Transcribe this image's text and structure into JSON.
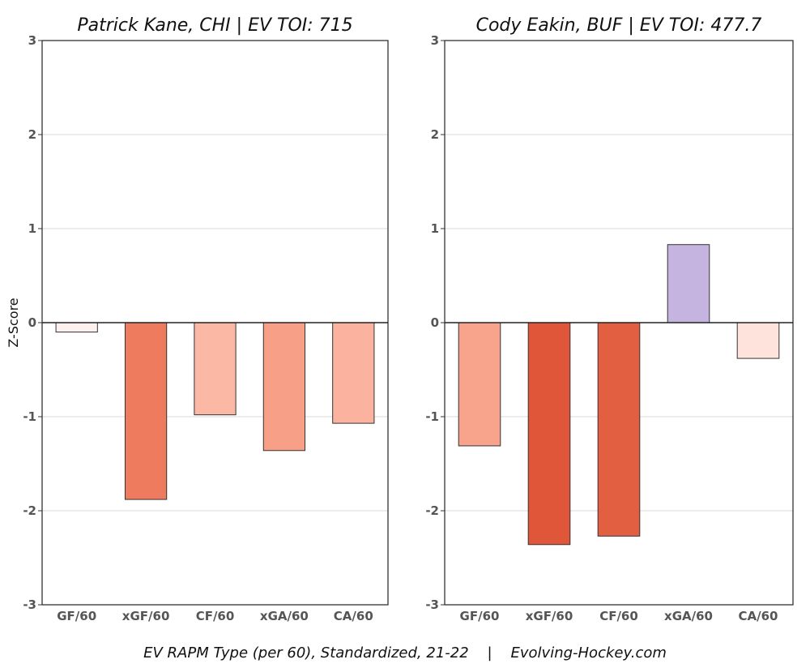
{
  "chart_data": [
    {
      "type": "bar",
      "title": "Patrick Kane, CHI  |  EV TOI: 715",
      "categories": [
        "GF/60",
        "xGF/60",
        "CF/60",
        "xGA/60",
        "CA/60"
      ],
      "values": [
        -0.1,
        -1.88,
        -0.98,
        -1.36,
        -1.07
      ],
      "bar_colors": [
        "#fdf0ee",
        "#ee7b5e",
        "#fbb9a5",
        "#f8a087",
        "#fbb3a0"
      ],
      "ylabel": "Z-Score",
      "ylim": [
        -3,
        3
      ],
      "yticks": [
        3,
        2,
        1,
        0,
        -1,
        -2,
        -3
      ],
      "ytick_labels": [
        "3",
        "2",
        "1",
        "0",
        "-1",
        "-2",
        "-3"
      ],
      "grid": true
    },
    {
      "type": "bar",
      "title": "Cody Eakin, BUF  |  EV TOI: 477.7",
      "categories": [
        "GF/60",
        "xGF/60",
        "CF/60",
        "xGA/60",
        "CA/60"
      ],
      "values": [
        -1.31,
        -2.36,
        -2.27,
        0.83,
        -0.38
      ],
      "bar_colors": [
        "#f8a38b",
        "#e05639",
        "#e35f42",
        "#c5b4e0",
        "#fde3dc"
      ],
      "ylim": [
        -3,
        3
      ],
      "yticks": [
        3,
        2,
        1,
        0,
        -1,
        -2,
        -3
      ],
      "ytick_labels": [
        "3",
        "2",
        "1",
        "0",
        "-1",
        "-2",
        "-3"
      ],
      "grid": true
    }
  ],
  "caption": "EV RAPM Type (per 60), Standardized, 21-22    |    Evolving-Hockey.com"
}
